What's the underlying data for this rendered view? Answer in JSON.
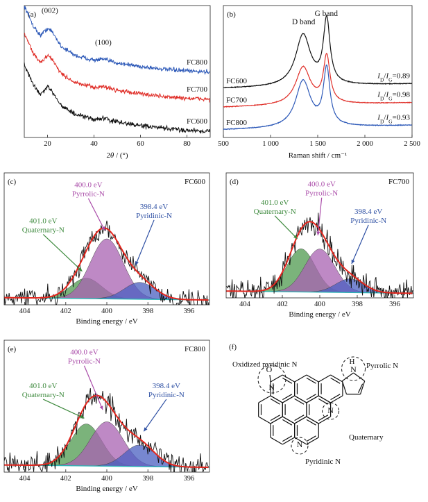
{
  "chart_data": [
    {
      "panel": "(a)",
      "type": "line",
      "xlabel_parts": [
        "2",
        "θ",
        " / (°)"
      ],
      "xlim": [
        10,
        90
      ],
      "xticks": [
        20,
        40,
        60,
        80
      ],
      "series": [
        {
          "name": "FC800",
          "color": "#2d59b8",
          "offset": 0.7,
          "noise": 0.035
        },
        {
          "name": "FC700",
          "color": "#e0302a",
          "offset": 0.4,
          "noise": 0.035
        },
        {
          "name": "FC600",
          "color": "#111111",
          "offset": 0.05,
          "noise": 0.04
        }
      ],
      "profile": [
        [
          10,
          0.75
        ],
        [
          14,
          0.52
        ],
        [
          17,
          0.42
        ],
        [
          20,
          0.5
        ],
        [
          22,
          0.46
        ],
        [
          26,
          0.3
        ],
        [
          32,
          0.2
        ],
        [
          40,
          0.15
        ],
        [
          44,
          0.16
        ],
        [
          50,
          0.12
        ],
        [
          60,
          0.08
        ],
        [
          70,
          0.05
        ],
        [
          80,
          0.03
        ],
        [
          90,
          0.02
        ]
      ],
      "annotations": [
        {
          "text": "(002)",
          "x": 21,
          "y": 1.37
        },
        {
          "text": "(100)",
          "x": 44,
          "y": 1.02
        }
      ]
    },
    {
      "panel": "(b)",
      "type": "line",
      "xlabel": "Raman shift / cm⁻¹",
      "xlim": [
        500,
        2500
      ],
      "xticks": [
        500,
        1000,
        1500,
        2000,
        2500
      ],
      "xtick_labels": [
        "500",
        "1 000",
        "1 500",
        "2 000",
        "2 500"
      ],
      "series": [
        {
          "name": "FC600",
          "color": "#111111",
          "offset": 0.65,
          "d_height": 0.68,
          "g_height": 0.85,
          "ratio": "0.89"
        },
        {
          "name": "FC700",
          "color": "#e0302a",
          "offset": 0.4,
          "d_height": 0.5,
          "g_height": 0.62,
          "ratio": "0.98"
        },
        {
          "name": "FC800",
          "color": "#2d59b8",
          "offset": 0.1,
          "d_height": 0.62,
          "g_height": 0.75,
          "ratio": "0.93"
        }
      ],
      "band_labels": [
        {
          "text": "D band",
          "x": 1350
        },
        {
          "text": "G band",
          "x": 1590
        }
      ],
      "ratio_prefix": [
        "I",
        "D",
        "/",
        "I",
        "G",
        "="
      ]
    },
    {
      "panel": "(c)",
      "sample": "FC600",
      "type": "area",
      "xlabel": "Binding energy / eV",
      "xlim": [
        405,
        395
      ],
      "xticks": [
        404,
        402,
        400,
        398,
        396
      ],
      "peaks": {
        "quaternary": 0.17,
        "pyrrolic": 0.5,
        "pyridinic": 0.14
      },
      "noise_amp": 0.12,
      "labels": [
        {
          "lines": [
            "400.0 eV",
            "Pyrrolic-N"
          ],
          "color": "#a94aa8",
          "tx": 400.9,
          "ty": 0.98,
          "ax": 400.1,
          "ay": 0.62
        },
        {
          "lines": [
            "398.4 eV",
            "Pyridinic-N"
          ],
          "color": "#2d4fa3",
          "tx": 397.7,
          "ty": 0.8,
          "ax": 398.6,
          "ay": 0.33
        },
        {
          "lines": [
            "401.0 eV",
            "Quaternary-N"
          ],
          "color": "#3e8a3e",
          "tx": 403.1,
          "ty": 0.68,
          "ax": 401.2,
          "ay": 0.28
        }
      ]
    },
    {
      "panel": "(d)",
      "sample": "FC700",
      "type": "area",
      "xlabel": "Binding energy / eV",
      "xlim": [
        405,
        395
      ],
      "xticks": [
        404,
        402,
        400,
        398,
        396
      ],
      "peaks": {
        "quaternary": 0.38,
        "pyrrolic": 0.38,
        "pyridinic": 0.12
      },
      "noise_amp": 0.16,
      "labels": [
        {
          "lines": [
            "400.0 eV",
            "Pyrrolic-N"
          ],
          "color": "#a94aa8",
          "tx": 399.9,
          "ty": 0.98,
          "ax": 400.1,
          "ay": 0.55
        },
        {
          "lines": [
            "398.4 eV",
            "Pyridinic-N"
          ],
          "color": "#2d4fa3",
          "tx": 397.4,
          "ty": 0.74,
          "ax": 398.3,
          "ay": 0.3
        },
        {
          "lines": [
            "401.0 eV",
            "Quaternary-N"
          ],
          "color": "#3e8a3e",
          "tx": 402.4,
          "ty": 0.82,
          "ax": 401.2,
          "ay": 0.52
        }
      ]
    },
    {
      "panel": "(e)",
      "sample": "FC800",
      "type": "area",
      "xlabel": "Binding energy / eV",
      "xlim": [
        405,
        395
      ],
      "xticks": [
        404,
        402,
        400,
        398,
        396
      ],
      "peaks": {
        "quaternary": 0.35,
        "pyrrolic": 0.37,
        "pyridinic": 0.18
      },
      "noise_amp": 0.14,
      "labels": [
        {
          "lines": [
            "400.0 eV",
            "Pyrrolic-N"
          ],
          "color": "#a94aa8",
          "tx": 401.1,
          "ty": 0.98,
          "ax": 400.2,
          "ay": 0.52
        },
        {
          "lines": [
            "398.4 eV",
            "Pyridinic-N"
          ],
          "color": "#2d4fa3",
          "tx": 397.1,
          "ty": 0.7,
          "ax": 398.2,
          "ay": 0.34
        },
        {
          "lines": [
            "401.0 eV",
            "Quaternary-N"
          ],
          "color": "#3e8a3e",
          "tx": 403.1,
          "ty": 0.7,
          "ax": 401.1,
          "ay": 0.45
        }
      ]
    }
  ],
  "colors": {
    "fit_envelope": "#e3261e",
    "background_line": "#29b6b6",
    "quaternary_fill": "#4f9a4f",
    "pyrrolic_fill": "#a861b2",
    "pyridinic_fill": "#4a5fc0"
  },
  "panel_f": {
    "panel": "(f)",
    "labels": {
      "oxidized": "Oxidized pyridinic N",
      "pyrrolic": "Pyrrolic N",
      "quaternary": "Quaternary",
      "pyridinic": "Pyridinic N",
      "oxide_o": "O",
      "oxide_minus": "−",
      "nitrogen": "N",
      "hydrogen": "H",
      "plus": "+"
    }
  }
}
